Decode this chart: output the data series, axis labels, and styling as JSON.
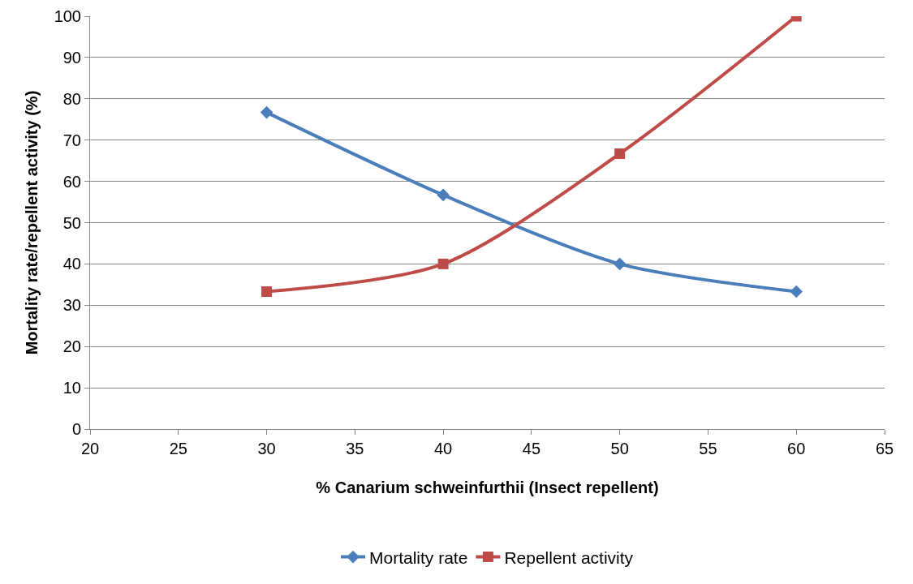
{
  "chart_data": {
    "type": "line",
    "xlabel": "% Canarium schweinfurthii (Insect repellent)",
    "ylabel": "Mortality rate/repellent activity (%)",
    "x": [
      30,
      40,
      50,
      60
    ],
    "series": [
      {
        "name": "Mortality rate",
        "color": "#4a7ebb",
        "marker": "diamond",
        "values": [
          76.7,
          56.7,
          40,
          33.3
        ]
      },
      {
        "name": "Repellent activity",
        "color": "#be4b48",
        "marker": "square",
        "values": [
          33.3,
          40,
          66.7,
          100
        ]
      }
    ],
    "xlim": [
      20,
      65
    ],
    "xticks": [
      20,
      25,
      30,
      35,
      40,
      45,
      50,
      55,
      60,
      65
    ],
    "ylim": [
      0,
      100
    ],
    "yticks": [
      0,
      10,
      20,
      30,
      40,
      50,
      60,
      70,
      80,
      90,
      100
    ],
    "grid": "y",
    "legend": "bottom",
    "line_style": "solid"
  }
}
